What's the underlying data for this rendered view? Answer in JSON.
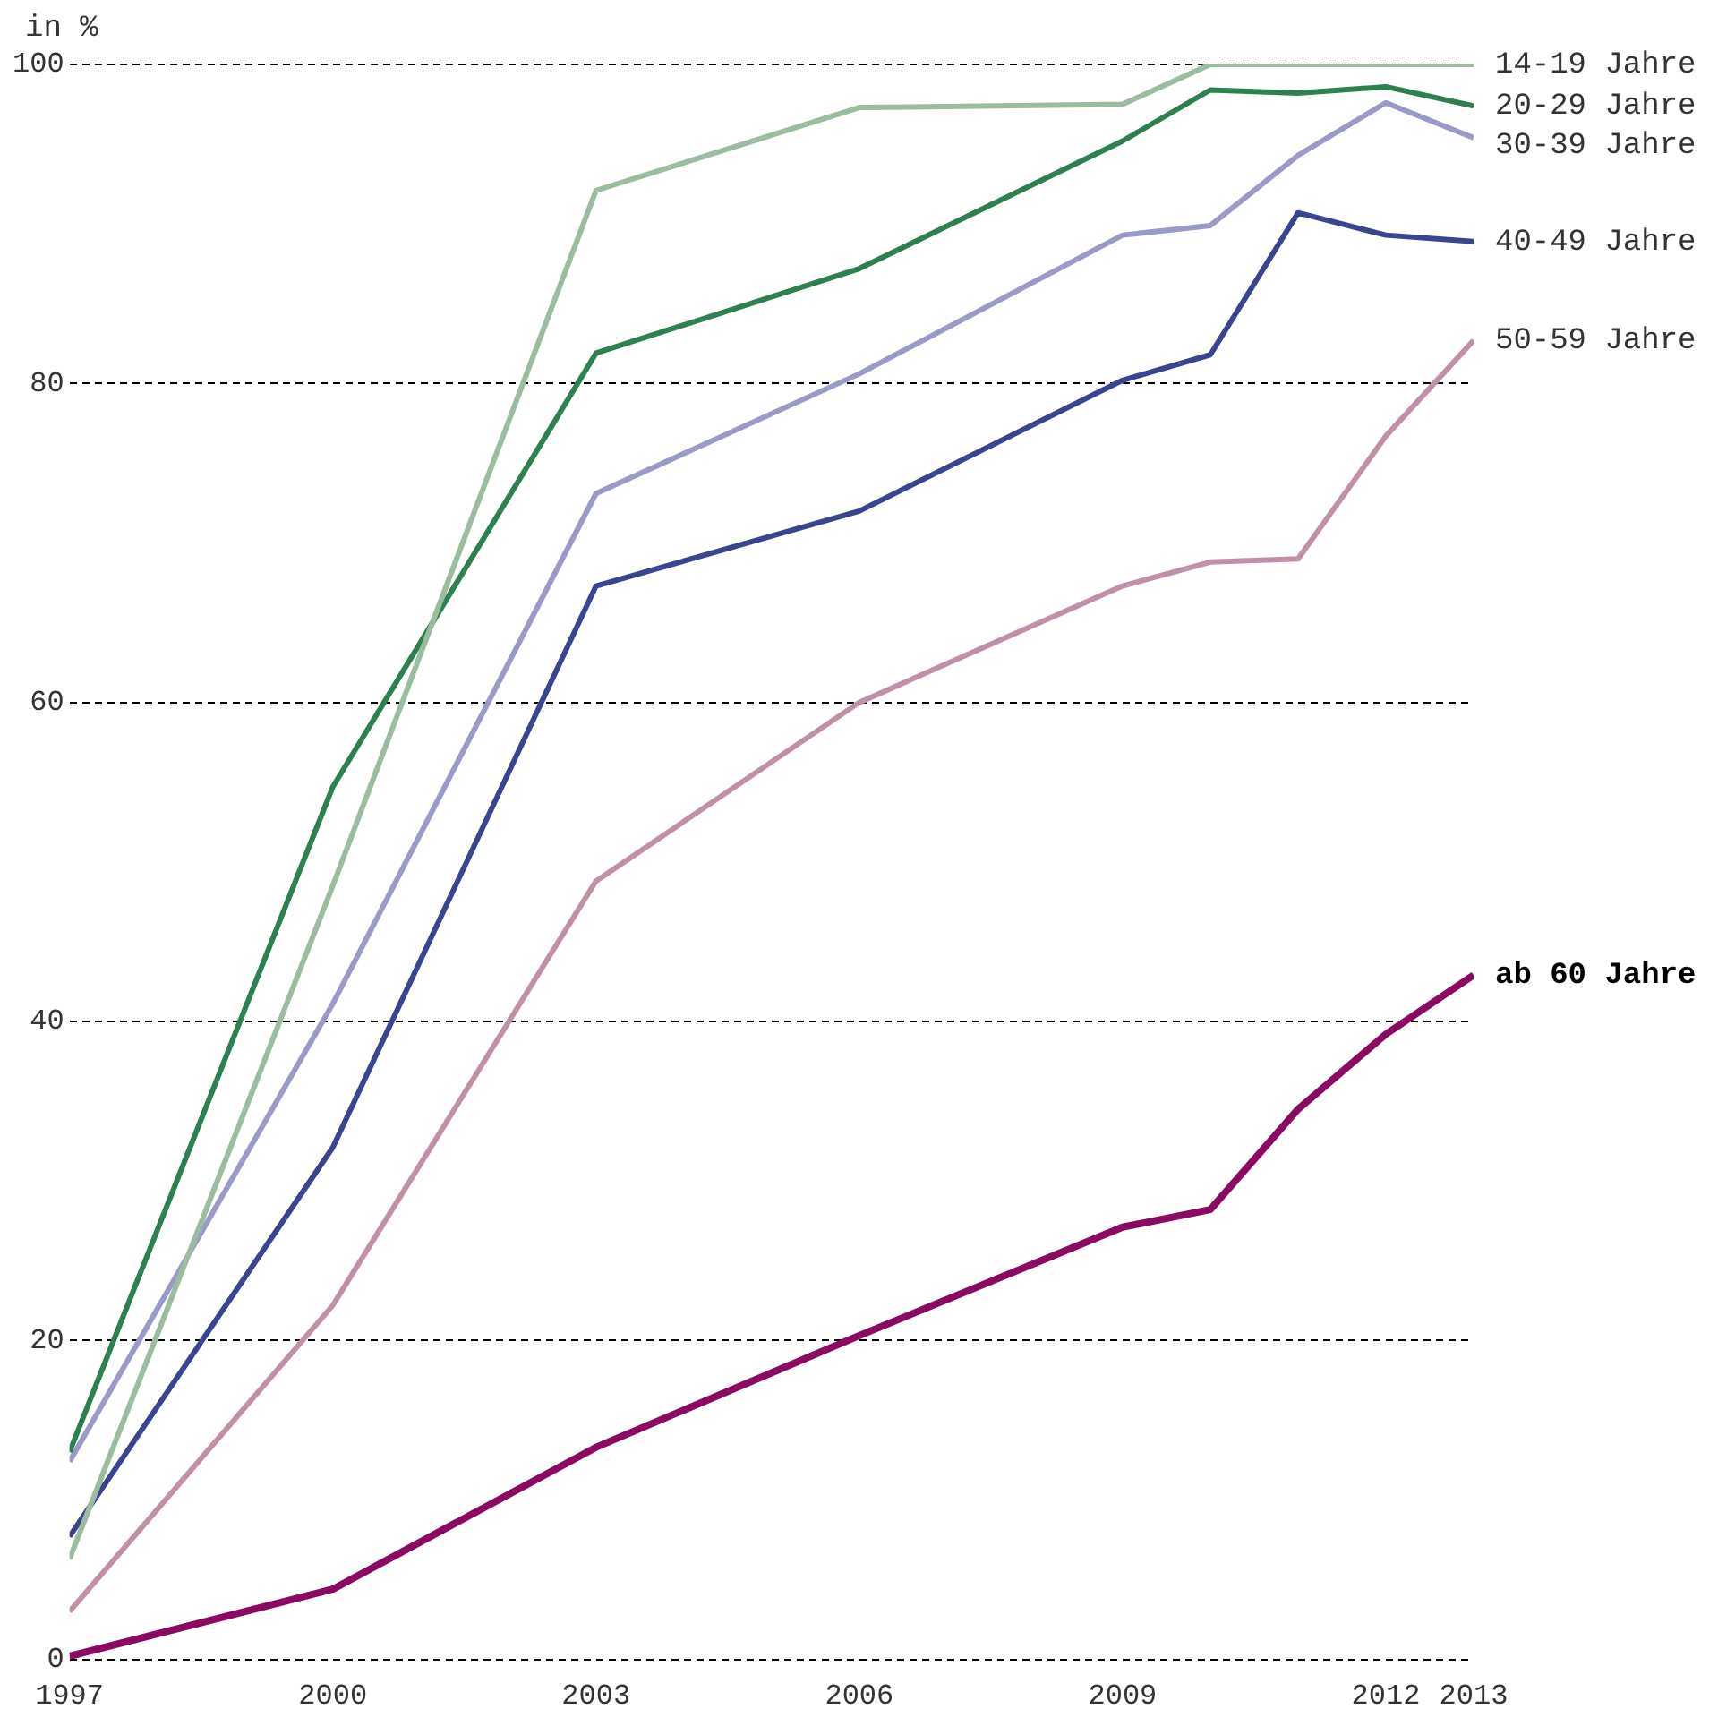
{
  "chart_data": {
    "type": "line",
    "ylabel": "in %",
    "x": [
      1997,
      2000,
      2003,
      2006,
      2009,
      2010,
      2011,
      2012,
      2013
    ],
    "series": [
      {
        "name": "14-19 Jahre",
        "color": "#9bbc9e",
        "values": [
          6.3,
          48.5,
          92.1,
          97.3,
          97.5,
          100,
          100,
          100,
          100
        ]
      },
      {
        "name": "20-29 Jahre",
        "color": "#2e8050",
        "values": [
          13.0,
          54.7,
          81.9,
          87.2,
          95.2,
          98.4,
          98.2,
          98.6,
          97.4
        ]
      },
      {
        "name": "30-39 Jahre",
        "color": "#9a9ac8",
        "values": [
          12.4,
          41.1,
          73.1,
          80.6,
          89.3,
          89.9,
          94.3,
          97.6,
          95.4
        ]
      },
      {
        "name": "40-49 Jahre",
        "color": "#3a4590",
        "values": [
          7.7,
          32.1,
          67.3,
          72.0,
          80.2,
          81.8,
          90.7,
          89.3,
          88.9
        ]
      },
      {
        "name": "50-59 Jahre",
        "color": "#c090a8",
        "values": [
          3.0,
          22.2,
          48.8,
          60.0,
          67.3,
          68.8,
          69.0,
          76.7,
          82.7
        ]
      },
      {
        "name": "ab 60 Jahre",
        "color": "#8a0a62",
        "values": [
          0.2,
          4.4,
          13.3,
          20.3,
          27.1,
          28.2,
          34.5,
          39.2,
          42.9
        ]
      }
    ],
    "xlim": [
      1997,
      2013
    ],
    "xticks": [
      1997,
      2000,
      2003,
      2006,
      2009,
      2012,
      2013
    ],
    "ylim": [
      0,
      100
    ],
    "yticks": [
      0,
      20,
      40,
      60,
      80,
      100
    ],
    "grid": "y",
    "legend": false,
    "marker": "none",
    "line_style": "solid"
  }
}
